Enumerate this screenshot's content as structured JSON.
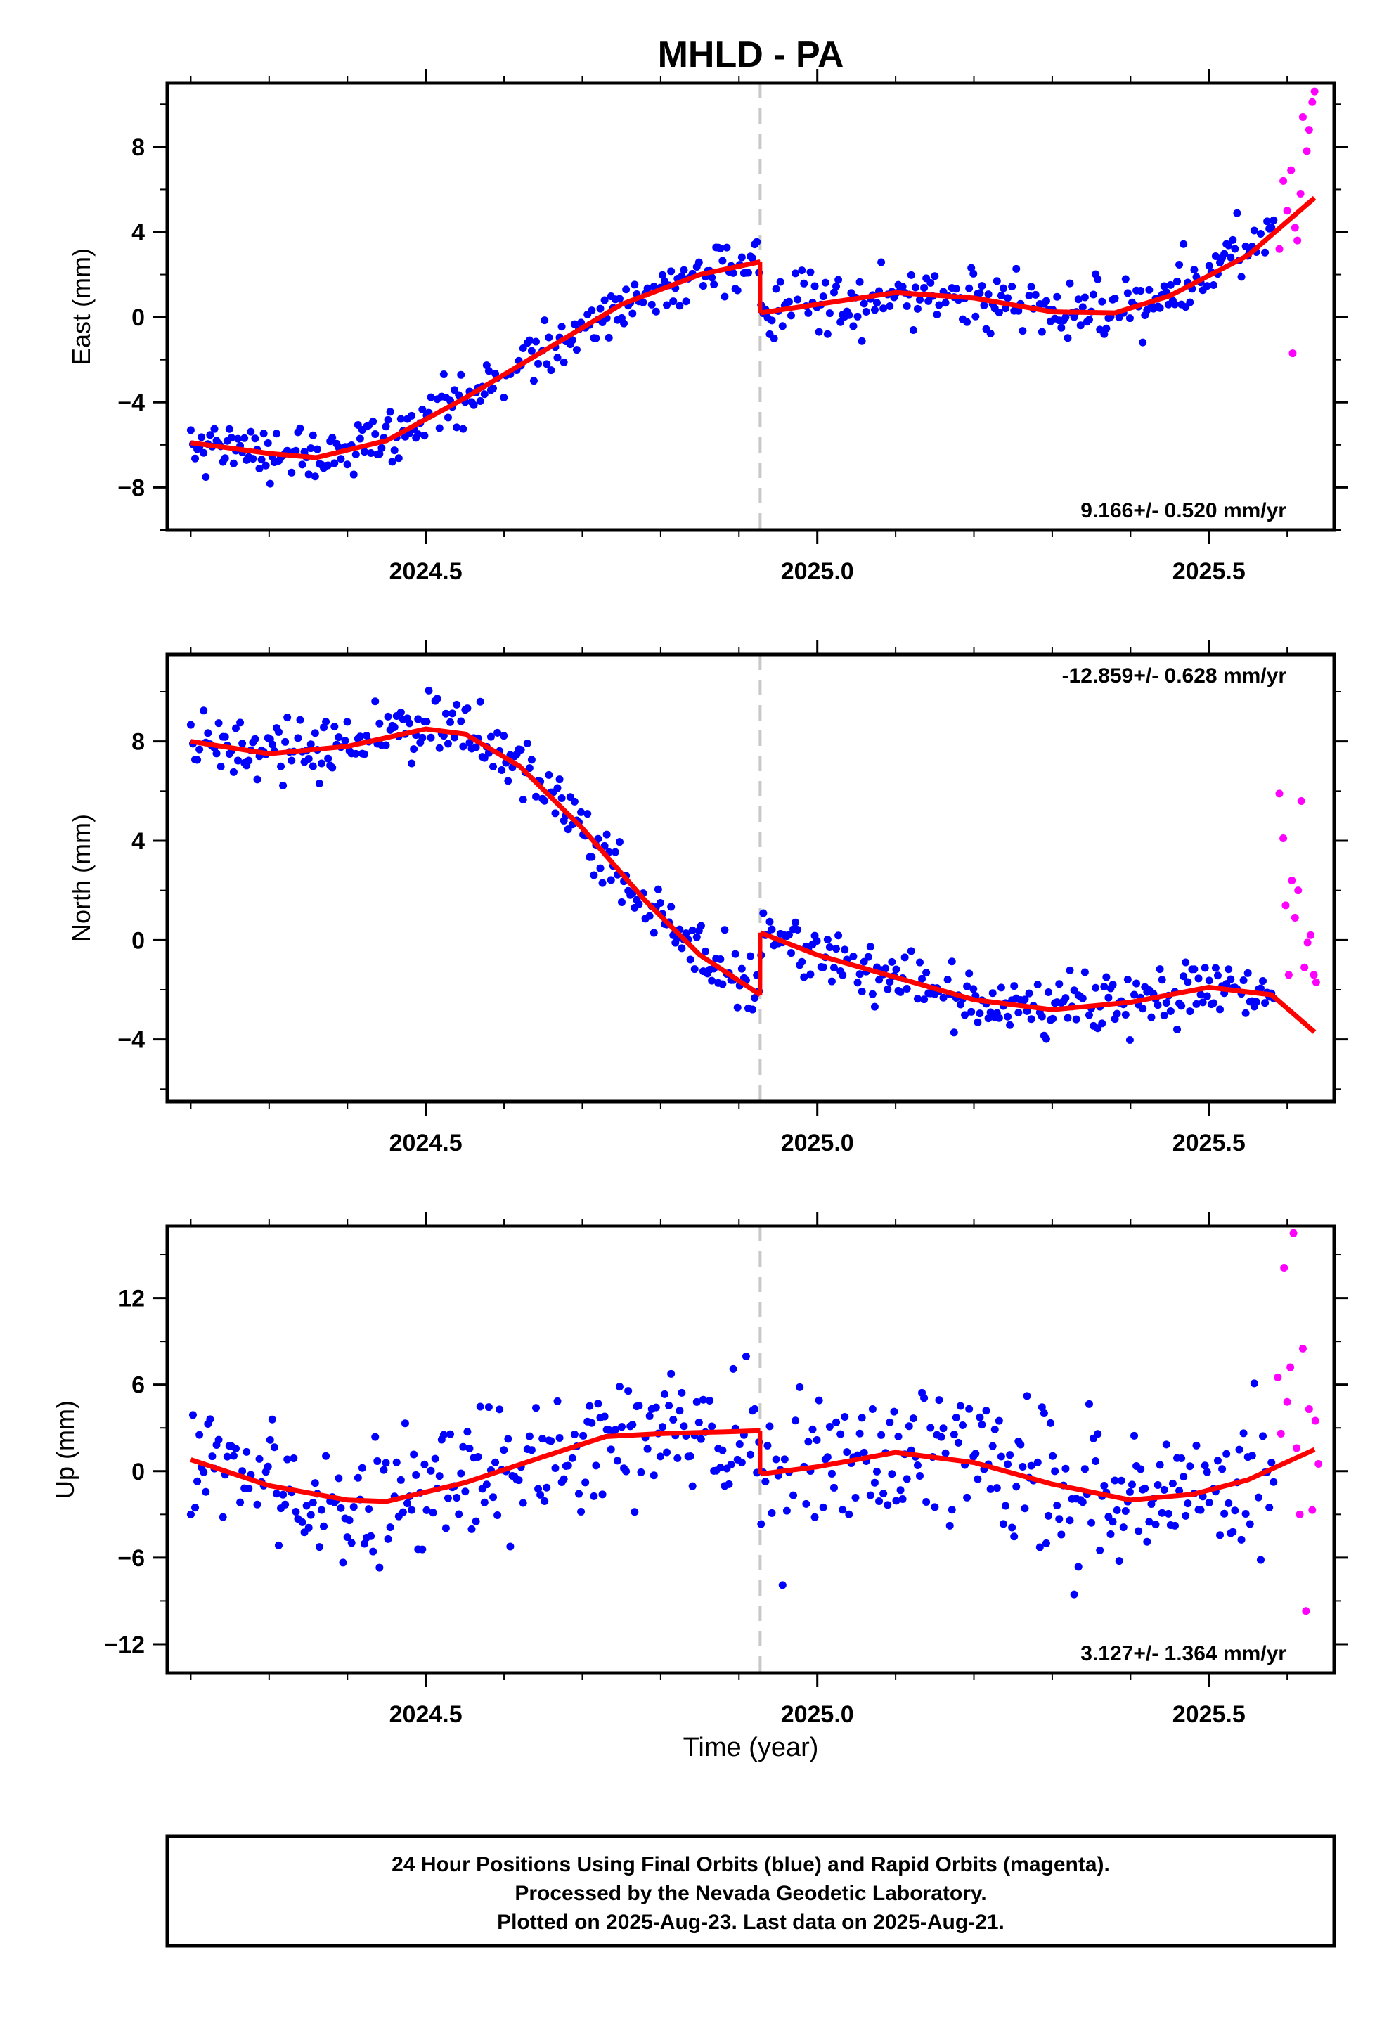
{
  "title": "MHLD - PA",
  "xlabel": "Time (year)",
  "footer": {
    "line1": "24 Hour Positions Using Final Orbits (blue) and Rapid Orbits (magenta).",
    "line2": "Processed by the Nevada Geodetic Laboratory.",
    "line3": "Plotted on 2025-Aug-23. Last data on 2025-Aug-21."
  },
  "colors": {
    "final": "#0000ff",
    "rapid": "#ff00ff",
    "model": "#ff0000",
    "offset": "#c8c8c8"
  },
  "chart_data": [
    {
      "type": "scatter",
      "ylabel": "East (mm)",
      "rate": "9.166+/- 0.520 mm/yr",
      "rate_position": "bottom-right",
      "xlim": [
        2024.17,
        2025.66
      ],
      "ylim": [
        -10,
        11
      ],
      "xticks": [
        "2024.5",
        "2025.0",
        "2025.5"
      ],
      "xtick_values": [
        2024.5,
        2025.0,
        2025.5
      ],
      "yticks": [
        "−8",
        "−4",
        "0",
        "4",
        "8"
      ],
      "ytick_values": [
        -8,
        -4,
        0,
        4,
        8
      ],
      "offset_epoch": 2024.927,
      "model": [
        [
          2024.2,
          -5.9
        ],
        [
          2024.3,
          -6.4
        ],
        [
          2024.36,
          -6.6
        ],
        [
          2024.45,
          -5.8
        ],
        [
          2024.55,
          -3.8
        ],
        [
          2024.65,
          -1.6
        ],
        [
          2024.75,
          0.6
        ],
        [
          2024.85,
          2.0
        ],
        [
          2024.927,
          2.6
        ],
        [
          2024.9271,
          0.2
        ],
        [
          2025.0,
          0.6
        ],
        [
          2025.1,
          1.15
        ],
        [
          2025.2,
          0.9
        ],
        [
          2025.3,
          0.25
        ],
        [
          2025.38,
          0.2
        ],
        [
          2025.45,
          1.0
        ],
        [
          2025.55,
          2.9
        ],
        [
          2025.635,
          5.6
        ]
      ],
      "rapid": [
        [
          2025.59,
          3.2
        ],
        [
          2025.595,
          6.4
        ],
        [
          2025.6,
          5.0
        ],
        [
          2025.605,
          6.9
        ],
        [
          2025.607,
          -1.7
        ],
        [
          2025.61,
          4.2
        ],
        [
          2025.613,
          3.6
        ],
        [
          2025.617,
          5.8
        ],
        [
          2025.62,
          9.4
        ],
        [
          2025.625,
          7.8
        ],
        [
          2025.628,
          8.8
        ],
        [
          2025.632,
          10.1
        ],
        [
          2025.635,
          10.6
        ]
      ]
    },
    {
      "type": "scatter",
      "ylabel": "North (mm)",
      "rate": "-12.859+/- 0.628 mm/yr",
      "rate_position": "top-right",
      "xlim": [
        2024.17,
        2025.66
      ],
      "ylim": [
        -6.5,
        11.5
      ],
      "xticks": [
        "2024.5",
        "2025.0",
        "2025.5"
      ],
      "xtick_values": [
        2024.5,
        2025.0,
        2025.5
      ],
      "yticks": [
        "−4",
        "0",
        "4",
        "8"
      ],
      "ytick_values": [
        -4,
        0,
        4,
        8
      ],
      "offset_epoch": 2024.927,
      "model": [
        [
          2024.2,
          8.0
        ],
        [
          2024.3,
          7.5
        ],
        [
          2024.4,
          7.8
        ],
        [
          2024.5,
          8.5
        ],
        [
          2024.55,
          8.3
        ],
        [
          2024.62,
          7.0
        ],
        [
          2024.7,
          4.5
        ],
        [
          2024.78,
          1.6
        ],
        [
          2024.85,
          -0.6
        ],
        [
          2024.927,
          -2.2
        ],
        [
          2024.9271,
          0.3
        ],
        [
          2025.0,
          -0.6
        ],
        [
          2025.1,
          -1.5
        ],
        [
          2025.2,
          -2.4
        ],
        [
          2025.3,
          -2.8
        ],
        [
          2025.4,
          -2.5
        ],
        [
          2025.5,
          -1.9
        ],
        [
          2025.58,
          -2.2
        ],
        [
          2025.635,
          -3.7
        ]
      ],
      "rapid": [
        [
          2025.59,
          5.9
        ],
        [
          2025.595,
          4.1
        ],
        [
          2025.598,
          1.4
        ],
        [
          2025.602,
          -1.4
        ],
        [
          2025.606,
          2.4
        ],
        [
          2025.61,
          0.9
        ],
        [
          2025.614,
          2.0
        ],
        [
          2025.618,
          5.6
        ],
        [
          2025.622,
          -1.1
        ],
        [
          2025.626,
          -0.1
        ],
        [
          2025.63,
          0.2
        ],
        [
          2025.634,
          -1.4
        ],
        [
          2025.637,
          -1.7
        ]
      ]
    },
    {
      "type": "scatter",
      "ylabel": "Up (mm)",
      "rate": "3.127+/- 1.364 mm/yr",
      "rate_position": "bottom-right",
      "xlim": [
        2024.17,
        2025.66
      ],
      "ylim": [
        -14,
        17
      ],
      "xticks": [
        "2024.5",
        "2025.0",
        "2025.5"
      ],
      "xtick_values": [
        2024.5,
        2025.0,
        2025.5
      ],
      "yticks": [
        "−12",
        "−6",
        "0",
        "6",
        "12"
      ],
      "ytick_values": [
        -12,
        -6,
        0,
        6,
        12
      ],
      "offset_epoch": 2024.927,
      "model": [
        [
          2024.2,
          0.8
        ],
        [
          2024.3,
          -1.0
        ],
        [
          2024.4,
          -2.0
        ],
        [
          2024.45,
          -2.1
        ],
        [
          2024.55,
          -0.8
        ],
        [
          2024.65,
          1.0
        ],
        [
          2024.73,
          2.4
        ],
        [
          2024.8,
          2.6
        ],
        [
          2024.927,
          2.8
        ],
        [
          2024.9271,
          -0.2
        ],
        [
          2025.0,
          0.3
        ],
        [
          2025.1,
          1.3
        ],
        [
          2025.2,
          0.6
        ],
        [
          2025.3,
          -0.9
        ],
        [
          2025.4,
          -2.0
        ],
        [
          2025.48,
          -1.6
        ],
        [
          2025.55,
          -0.6
        ],
        [
          2025.635,
          1.5
        ]
      ],
      "rapid": [
        [
          2025.588,
          6.5
        ],
        [
          2025.592,
          2.6
        ],
        [
          2025.596,
          14.1
        ],
        [
          2025.6,
          4.8
        ],
        [
          2025.604,
          7.2
        ],
        [
          2025.608,
          16.5
        ],
        [
          2025.612,
          1.6
        ],
        [
          2025.616,
          -3.0
        ],
        [
          2025.62,
          8.5
        ],
        [
          2025.624,
          -9.7
        ],
        [
          2025.628,
          4.3
        ],
        [
          2025.632,
          -2.7
        ],
        [
          2025.636,
          3.5
        ],
        [
          2025.64,
          0.5
        ]
      ]
    }
  ]
}
